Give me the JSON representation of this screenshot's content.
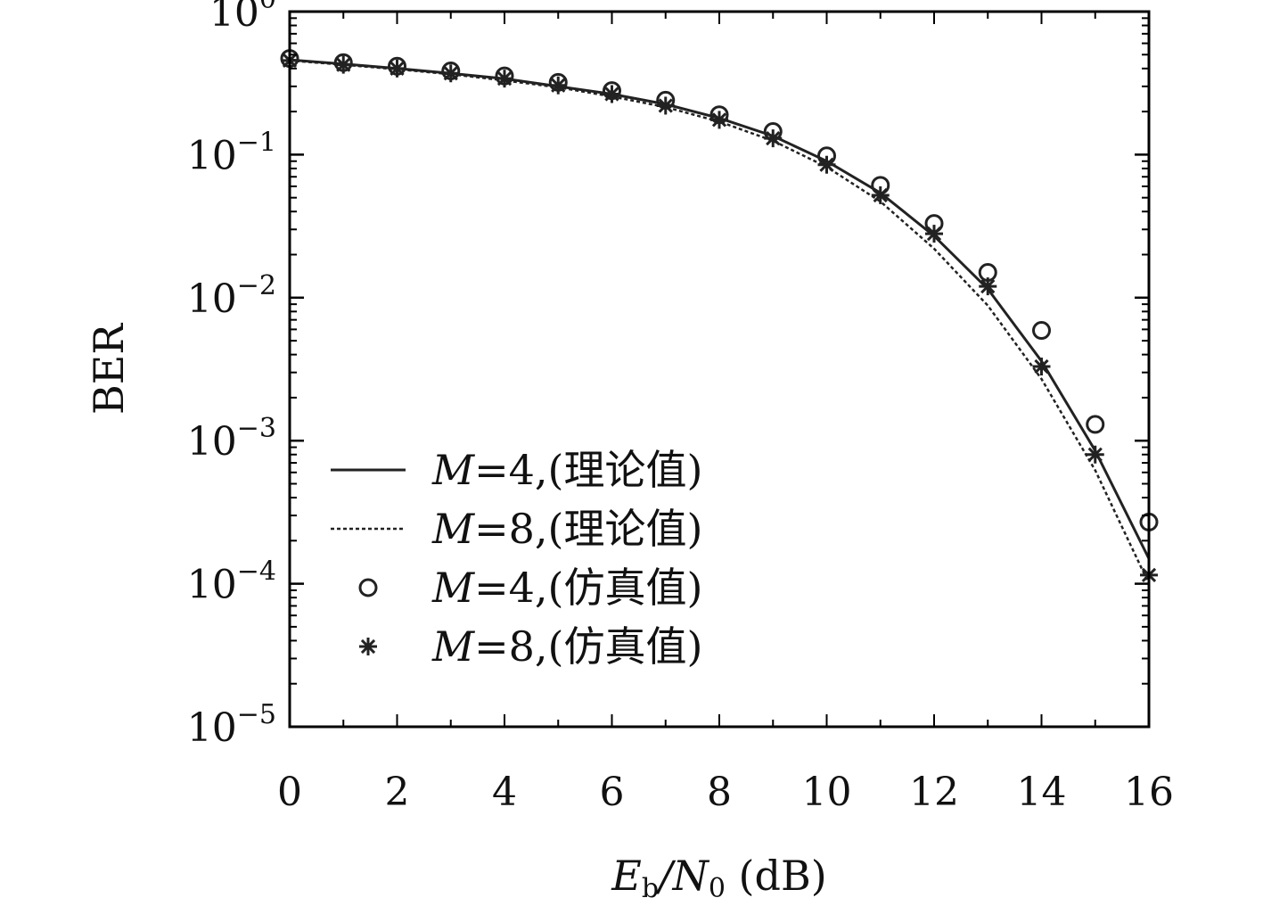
{
  "chart_data": {
    "type": "line",
    "xlabel": {
      "main": "E",
      "sub1": "b",
      "mid": "/N",
      "sub2": "0",
      "unit": " (dB)"
    },
    "ylabel": "BER",
    "xlim": [
      0,
      16
    ],
    "ylim": [
      1e-05,
      1
    ],
    "yscale": "log",
    "x_ticks": [
      "0",
      "2",
      "4",
      "6",
      "8",
      "10",
      "12",
      "14",
      "16"
    ],
    "y_ticks": [
      {
        "base": "10",
        "exp": "0",
        "value": 1
      },
      {
        "base": "10",
        "exp": "−1",
        "value": 0.1
      },
      {
        "base": "10",
        "exp": "−2",
        "value": 0.01
      },
      {
        "base": "10",
        "exp": "−3",
        "value": 0.001
      },
      {
        "base": "10",
        "exp": "−4",
        "value": 0.0001
      },
      {
        "base": "10",
        "exp": "−5",
        "value": 1e-05
      }
    ],
    "grid": false,
    "legend_position": "bottom-left",
    "series": [
      {
        "name": "M=4,(理论值)",
        "name_parts": {
          "var": "M",
          "rest": "=4,(理论值)"
        },
        "style": "solid",
        "x": [
          0,
          1,
          2,
          3,
          4,
          5,
          6,
          7,
          8,
          9,
          10,
          11,
          12,
          13,
          14,
          15,
          16
        ],
        "y": [
          0.46,
          0.43,
          0.4,
          0.37,
          0.34,
          0.3,
          0.265,
          0.225,
          0.18,
          0.135,
          0.09,
          0.054,
          0.027,
          0.0115,
          0.0036,
          0.00085,
          0.00015
        ]
      },
      {
        "name": "M=8,(理论值)",
        "name_parts": {
          "var": "M",
          "rest": "=8,(理论值)"
        },
        "style": "dashed",
        "x": [
          0,
          1,
          2,
          3,
          4,
          5,
          6,
          7,
          8,
          9,
          10,
          11,
          12,
          13,
          14,
          15,
          16
        ],
        "y": [
          0.455,
          0.425,
          0.395,
          0.365,
          0.33,
          0.295,
          0.255,
          0.215,
          0.17,
          0.125,
          0.082,
          0.047,
          0.022,
          0.0088,
          0.0027,
          0.00062,
          0.0001
        ]
      },
      {
        "name": "M=4,(仿真值)",
        "name_parts": {
          "var": "M",
          "rest": "=4,(仿真值)"
        },
        "style": "circle",
        "x": [
          0,
          1,
          2,
          3,
          4,
          5,
          6,
          7,
          8,
          9,
          10,
          11,
          12,
          13,
          14,
          15,
          16
        ],
        "y": [
          0.47,
          0.44,
          0.415,
          0.385,
          0.355,
          0.32,
          0.28,
          0.24,
          0.19,
          0.145,
          0.098,
          0.061,
          0.033,
          0.015,
          0.0059,
          0.0013,
          0.00027
        ]
      },
      {
        "name": "M=8,(仿真值)",
        "name_parts": {
          "var": "M",
          "rest": "=8,(仿真值)"
        },
        "style": "star",
        "x": [
          0,
          1,
          2,
          3,
          4,
          5,
          6,
          7,
          8,
          9,
          10,
          11,
          12,
          13,
          14,
          15,
          16
        ],
        "y": [
          0.455,
          0.425,
          0.4,
          0.37,
          0.34,
          0.305,
          0.265,
          0.22,
          0.175,
          0.13,
          0.085,
          0.052,
          0.028,
          0.012,
          0.0033,
          0.0008,
          0.000115
        ]
      }
    ],
    "colors": {
      "line": "#222222",
      "axis": "#000000"
    }
  }
}
